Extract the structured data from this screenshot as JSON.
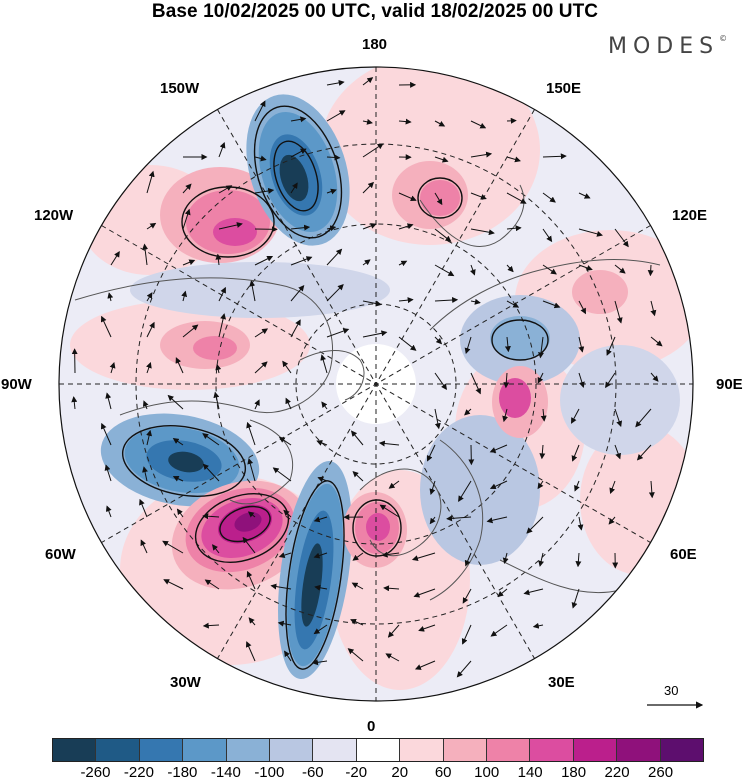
{
  "title": "Base 10/02/2025 00 UTC, valid 18/02/2025 00 UTC",
  "brand": "MODES",
  "brand_mark": "©",
  "longitude_labels": {
    "top": "180",
    "bottom": "0",
    "left": "90W",
    "right": "90E",
    "w150": "150W",
    "w120": "120W",
    "w60": "60W",
    "w30": "30W",
    "e150": "150E",
    "e120": "120E",
    "e60": "60E",
    "e30": "30E"
  },
  "vector_reference": {
    "label": "30"
  },
  "colorbar": {
    "colors": [
      "#183d56",
      "#1f5a86",
      "#3577b0",
      "#5c98c8",
      "#8ab1d6",
      "#b9c7e2",
      "#e4e4f2",
      "#ffffff",
      "#fbd8dc",
      "#f5b0bd",
      "#ee82a8",
      "#dc4da0",
      "#bb1f8c",
      "#8f117b",
      "#5d0e6e"
    ],
    "ticks": [
      "-260",
      "-220",
      "-180",
      "-140",
      "-100",
      "-60",
      "-20",
      "20",
      "60",
      "100",
      "140",
      "180",
      "220",
      "260"
    ]
  }
}
